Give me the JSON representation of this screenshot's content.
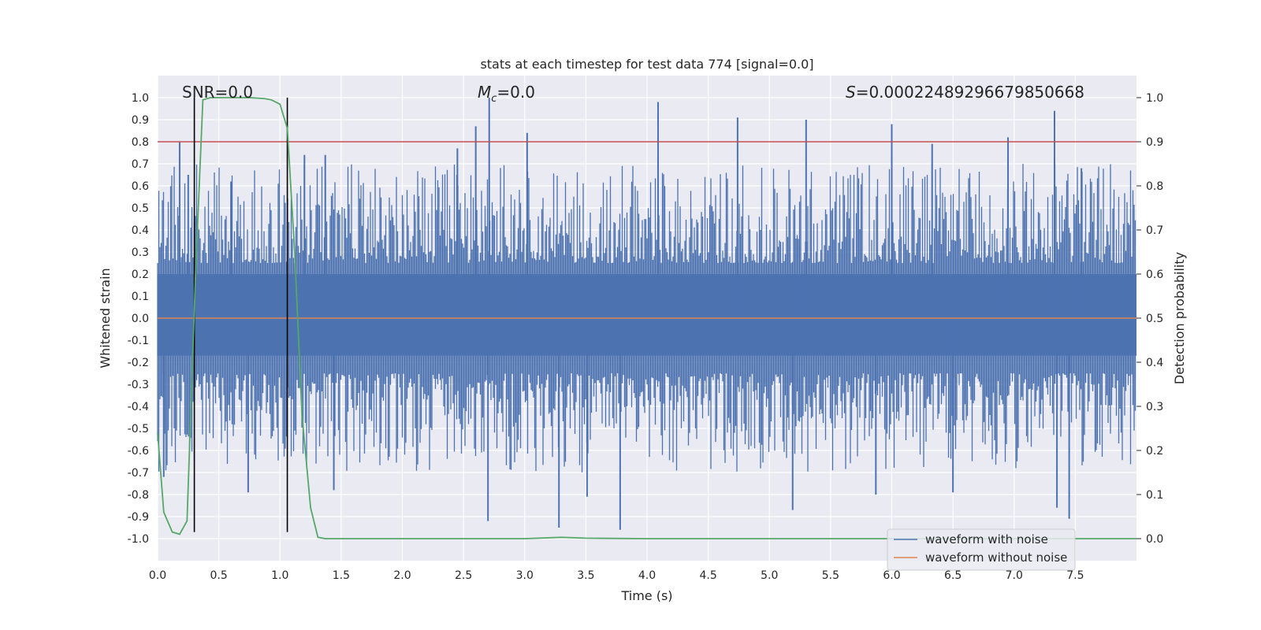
{
  "chart_data": {
    "type": "line",
    "title": "stats at each timestep for test data 774 [signal=0.0]",
    "xlabel": "Time (s)",
    "ylabel": "Whitened strain",
    "y2label": "Detection probability",
    "xlim": [
      0.0,
      8.0
    ],
    "ylim": [
      -1.1,
      1.1
    ],
    "y2lim": [
      -0.05,
      1.05
    ],
    "xticks": [
      "0.0",
      "0.5",
      "1.0",
      "1.5",
      "2.0",
      "2.5",
      "3.0",
      "3.5",
      "4.0",
      "4.5",
      "5.0",
      "5.5",
      "6.0",
      "6.5",
      "7.0",
      "7.5"
    ],
    "yticks": [
      "1.0",
      "0.9",
      "0.8",
      "0.7",
      "0.6",
      "0.5",
      "0.4",
      "0.3",
      "0.2",
      "0.1",
      "0.0",
      "-0.1",
      "-0.2",
      "-0.3",
      "-0.4",
      "-0.5",
      "-0.6",
      "-0.7",
      "-0.8",
      "-0.9",
      "-1.0"
    ],
    "y2ticks": [
      "1.0",
      "0.9",
      "0.8",
      "0.7",
      "0.6",
      "0.5",
      "0.4",
      "0.3",
      "0.2",
      "0.1",
      "0.0"
    ],
    "grid": true,
    "legend_position": "lower-right",
    "annotations": {
      "snr": "SNR=0.0",
      "mc_symbol": "M",
      "mc_sub": "c",
      "mc_value": "=0.0",
      "s_symbol": "S",
      "s_value": "=0.00022489296679850668"
    },
    "threshold_line": {
      "y2": 0.9,
      "color": "#c44e52"
    },
    "vertical_markers": [
      0.3,
      1.06
    ],
    "series": [
      {
        "name": "waveform with noise",
        "color": "#4c72b0",
        "axis": "left",
        "style": "dense-noise",
        "envelope": {
          "core_min": -0.17,
          "core_max": 0.2,
          "peak_max": 1.0,
          "peak_min": -0.96
        },
        "peaks": [
          {
            "x": 0.18,
            "y": 0.8
          },
          {
            "x": 0.25,
            "y": 0.65
          },
          {
            "x": 0.6,
            "y": 0.62
          },
          {
            "x": 1.2,
            "y": 0.74
          },
          {
            "x": 1.37,
            "y": 0.74
          },
          {
            "x": 2.45,
            "y": 0.77
          },
          {
            "x": 2.6,
            "y": 0.87
          },
          {
            "x": 2.71,
            "y": 1.0
          },
          {
            "x": 3.02,
            "y": 0.84
          },
          {
            "x": 4.09,
            "y": 0.98
          },
          {
            "x": 4.74,
            "y": 0.91
          },
          {
            "x": 5.3,
            "y": 0.9
          },
          {
            "x": 6.0,
            "y": 0.88
          },
          {
            "x": 6.33,
            "y": 0.79
          },
          {
            "x": 6.95,
            "y": 0.82
          },
          {
            "x": 7.33,
            "y": 0.94
          },
          {
            "x": 7.55,
            "y": 0.68
          }
        ],
        "troughs": [
          {
            "x": 0.05,
            "y": -0.72
          },
          {
            "x": 0.74,
            "y": -0.79
          },
          {
            "x": 1.44,
            "y": -0.78
          },
          {
            "x": 2.7,
            "y": -0.92
          },
          {
            "x": 3.28,
            "y": -0.95
          },
          {
            "x": 3.51,
            "y": -0.81
          },
          {
            "x": 3.78,
            "y": -0.96
          },
          {
            "x": 5.19,
            "y": -0.87
          },
          {
            "x": 5.87,
            "y": -0.8
          },
          {
            "x": 6.5,
            "y": -0.79
          },
          {
            "x": 7.35,
            "y": -0.86
          },
          {
            "x": 7.45,
            "y": -0.91
          }
        ]
      },
      {
        "name": "waveform without noise",
        "color": "#dd8452",
        "axis": "left",
        "x": [
          0.0,
          8.0
        ],
        "y": [
          0.0,
          0.0
        ]
      },
      {
        "name": "detection probability",
        "color": "#55a868",
        "axis": "right",
        "x": [
          0.0,
          0.05,
          0.12,
          0.18,
          0.24,
          0.31,
          0.37,
          0.43,
          0.5,
          0.62,
          0.75,
          0.87,
          0.93,
          1.0,
          1.06,
          1.12,
          1.18,
          1.25,
          1.31,
          1.37,
          1.5,
          2.0,
          2.5,
          3.0,
          3.3,
          3.5,
          4.0,
          5.0,
          6.0,
          7.0,
          8.0
        ],
        "y": [
          0.24,
          0.06,
          0.015,
          0.01,
          0.04,
          0.6,
          0.995,
          1.0,
          1.0,
          1.0,
          1.0,
          0.998,
          0.995,
          0.985,
          0.93,
          0.65,
          0.28,
          0.07,
          0.003,
          0.0,
          0.0,
          0.0,
          0.0,
          0.0,
          0.003,
          0.001,
          0.0,
          0.0,
          0.0,
          0.0,
          0.0
        ]
      }
    ]
  }
}
